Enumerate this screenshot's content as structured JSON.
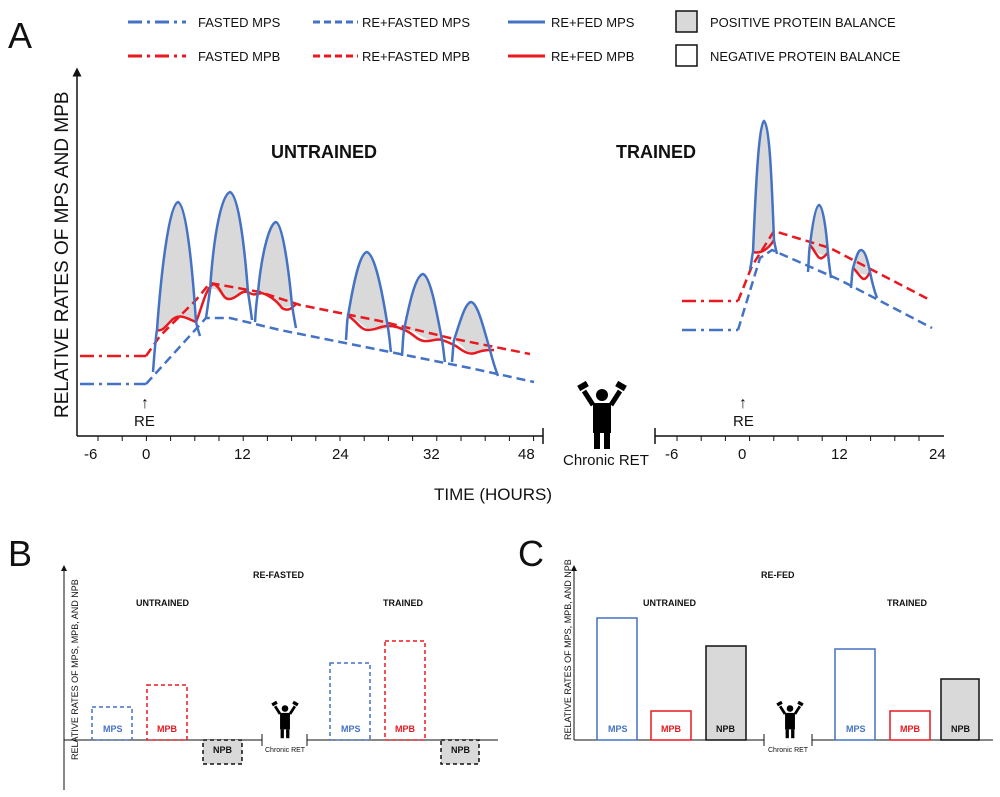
{
  "panels": {
    "a": "A",
    "b": "B",
    "c": "C"
  },
  "legend": {
    "fasted_mps": "FASTED MPS",
    "fasted_mpb": "FASTED MPB",
    "re_fasted_mps": "RE+FASTED MPS",
    "re_fasted_mpb": "RE+FASTED MPB",
    "re_fed_mps": "RE+FED MPS",
    "re_fed_mpb": "RE+FED MPB",
    "positive": "POSITIVE PROTEIN BALANCE",
    "negative": "NEGATIVE PROTEIN BALANCE"
  },
  "colors": {
    "mps": "#4472c4",
    "mpb": "#e8191f",
    "fill_positive": "#d9d9d9"
  },
  "panel_a": {
    "y_title": "RELATIVE RATES OF MPS AND MPB",
    "x_title": "TIME (HOURS)",
    "untrained": "UNTRAINED",
    "trained": "TRAINED",
    "re_label": "RE",
    "re_arrow": "↑",
    "untrained_ticks": [
      "-6",
      "0",
      "12",
      "24",
      "32",
      "48"
    ],
    "trained_ticks": [
      "-6",
      "0",
      "12",
      "24"
    ],
    "chronic": "Chronic RET"
  },
  "panel_b": {
    "title": "RE-FASTED",
    "y_title": "RELATIVE RATES OF MPS, MPB, AND NPB",
    "untrained": "UNTRAINED",
    "trained": "TRAINED",
    "mps": "MPS",
    "mpb": "MPB",
    "npb": "NPB",
    "chronic": "Chronic RET"
  },
  "panel_c": {
    "title": "RE-FED",
    "y_title": "RELATIVE RATES OF MPS, MPB, AND NPB",
    "untrained": "UNTRAINED",
    "trained": "TRAINED",
    "mps": "MPS",
    "mpb": "MPB",
    "npb": "NPB",
    "chronic": "Chronic RET"
  }
}
